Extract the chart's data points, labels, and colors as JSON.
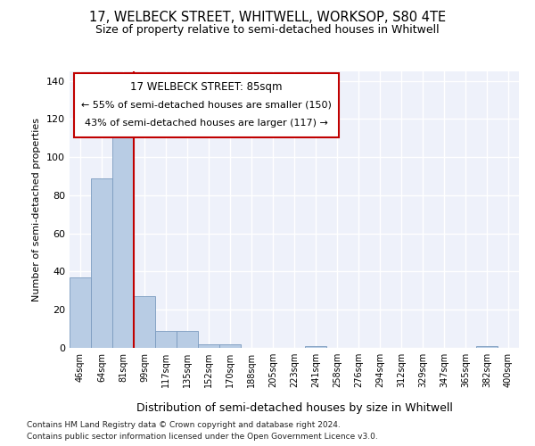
{
  "title": "17, WELBECK STREET, WHITWELL, WORKSOP, S80 4TE",
  "subtitle": "Size of property relative to semi-detached houses in Whitwell",
  "xlabel": "Distribution of semi-detached houses by size in Whitwell",
  "ylabel": "Number of semi-detached properties",
  "footnote1": "Contains HM Land Registry data © Crown copyright and database right 2024.",
  "footnote2": "Contains public sector information licensed under the Open Government Licence v3.0.",
  "annotation_line1": "17 WELBECK STREET: 85sqm",
  "annotation_line2": "← 55% of semi-detached houses are smaller (150)",
  "annotation_line3": "43% of semi-detached houses are larger (117) →",
  "bar_color": "#b8cce4",
  "bar_edgecolor": "#7a9bbf",
  "marker_color": "#c00000",
  "background_color": "#eef1fa",
  "categories": [
    "46sqm",
    "64sqm",
    "81sqm",
    "99sqm",
    "117sqm",
    "135sqm",
    "152sqm",
    "170sqm",
    "188sqm",
    "205sqm",
    "223sqm",
    "241sqm",
    "258sqm",
    "276sqm",
    "294sqm",
    "312sqm",
    "329sqm",
    "347sqm",
    "365sqm",
    "382sqm",
    "400sqm"
  ],
  "values": [
    37,
    89,
    111,
    27,
    9,
    9,
    2,
    2,
    0,
    0,
    0,
    1,
    0,
    0,
    0,
    0,
    0,
    0,
    0,
    1,
    0
  ],
  "property_bin_index": 2,
  "ylim": [
    0,
    145
  ],
  "yticks": [
    0,
    20,
    40,
    60,
    80,
    100,
    120,
    140
  ]
}
